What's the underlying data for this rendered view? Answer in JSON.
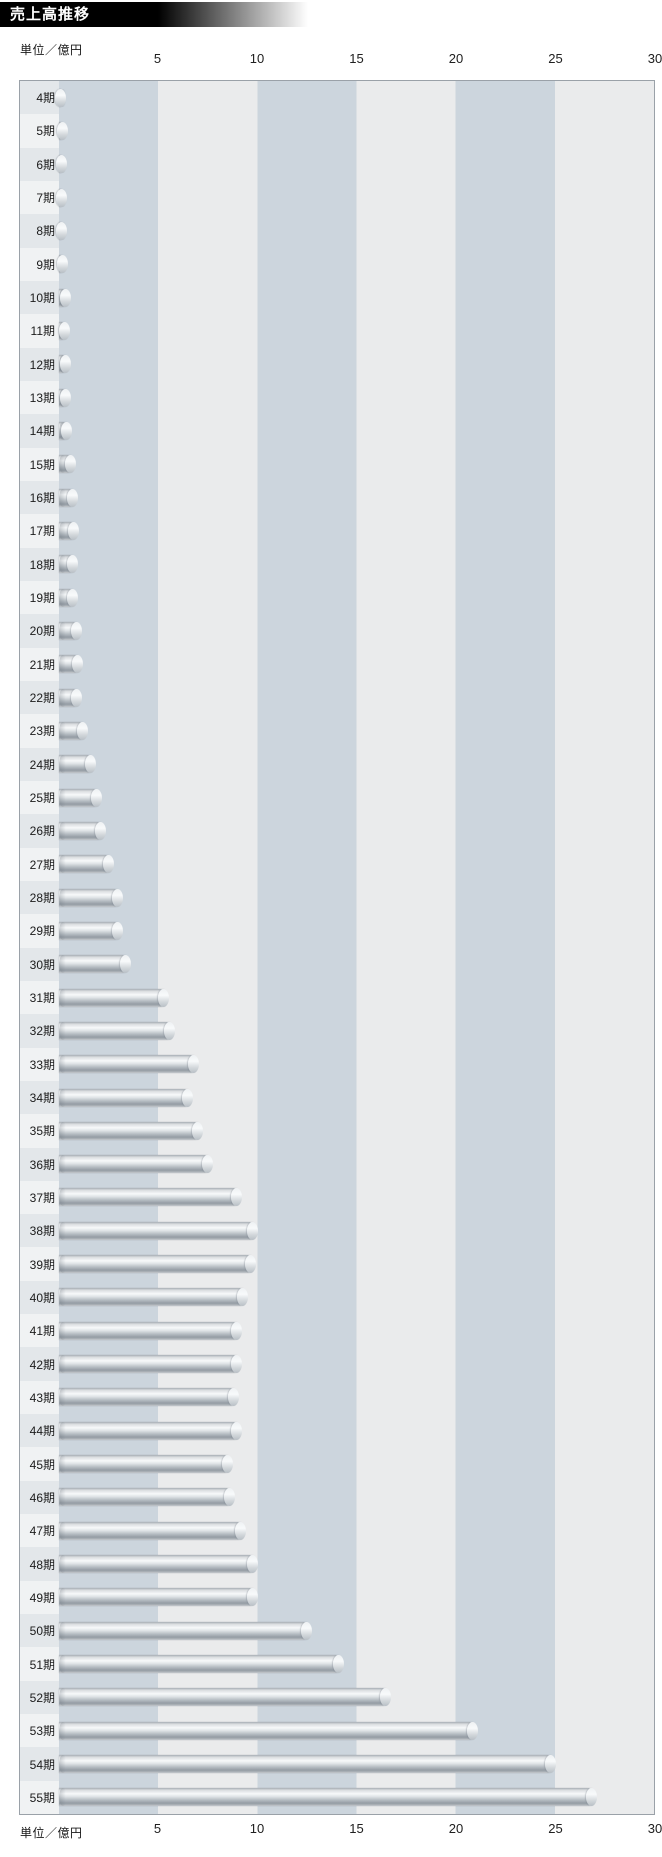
{
  "header": {
    "title": "売上高推移"
  },
  "axis": {
    "unit_label": "単位／億円",
    "ticks": [
      5,
      10,
      15,
      20,
      25,
      30
    ],
    "max": 30
  },
  "colors": {
    "band_dark": "#ccd5dd",
    "band_light": "#eaebec",
    "label_cell_dark": "#e3e7ea",
    "label_cell_light": "#f0f2f3",
    "plot_border": "#9aa1a8",
    "header_bg": "#000000",
    "header_text": "#ffffff",
    "bar_metal_mid": "#c7ccd1"
  },
  "chart_data": {
    "type": "bar",
    "orientation": "horizontal",
    "title": "売上高推移",
    "xlabel": "単位／億円",
    "xlim": [
      0,
      30
    ],
    "grid": "alternating-vertical-bands-every-5",
    "legend": "none",
    "categories": [
      "4期",
      "5期",
      "6期",
      "7期",
      "8期",
      "9期",
      "10期",
      "11期",
      "12期",
      "13期",
      "14期",
      "15期",
      "16期",
      "17期",
      "18期",
      "19期",
      "20期",
      "21期",
      "22期",
      "23期",
      "24期",
      "25期",
      "26期",
      "27期",
      "28期",
      "29期",
      "30期",
      "31期",
      "32期",
      "33期",
      "34期",
      "35期",
      "36期",
      "37期",
      "38期",
      "39期",
      "40期",
      "41期",
      "42期",
      "43期",
      "44期",
      "45期",
      "46期",
      "47期",
      "48期",
      "49期",
      "50期",
      "51期",
      "52期",
      "53期",
      "54期",
      "55期"
    ],
    "values": [
      0.3,
      0.4,
      0.35,
      0.35,
      0.35,
      0.4,
      0.55,
      0.5,
      0.55,
      0.55,
      0.6,
      0.8,
      0.9,
      0.95,
      0.9,
      0.9,
      1.1,
      1.15,
      1.1,
      1.4,
      1.8,
      2.1,
      2.3,
      2.7,
      3.2,
      3.2,
      3.6,
      5.5,
      5.8,
      7.0,
      6.7,
      7.2,
      7.7,
      9.2,
      10.0,
      9.9,
      9.5,
      9.2,
      9.2,
      9.0,
      9.2,
      8.7,
      8.8,
      9.4,
      10.0,
      10.0,
      12.7,
      14.3,
      16.7,
      21.1,
      25.0,
      27.1
    ]
  }
}
